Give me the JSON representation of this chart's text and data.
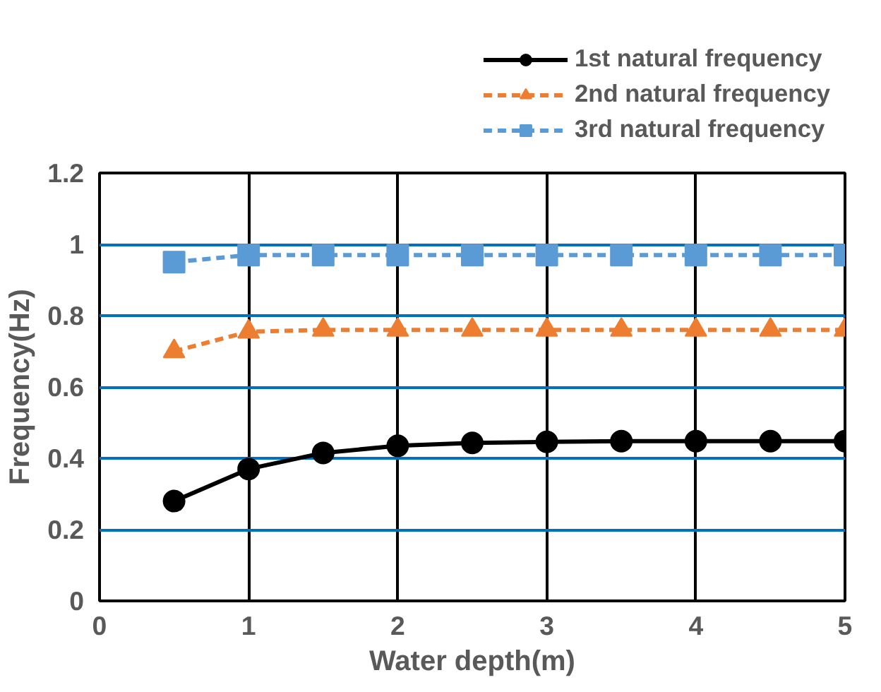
{
  "chart_data": {
    "type": "line",
    "xlabel": "Water depth(m)",
    "ylabel": "Frequency(Hz)",
    "x": [
      0.5,
      1,
      1.5,
      2,
      2.5,
      3,
      3.5,
      4,
      4.5,
      5
    ],
    "series": [
      {
        "name": "1st natural frequency",
        "color": "#000000",
        "marker": "circle",
        "line_style": "solid",
        "values": [
          0.28,
          0.37,
          0.415,
          0.435,
          0.443,
          0.446,
          0.448,
          0.448,
          0.448,
          0.448
        ]
      },
      {
        "name": "2nd natural frequency",
        "color": "#ed7d31",
        "marker": "triangle",
        "line_style": "dashed",
        "values": [
          0.7,
          0.755,
          0.76,
          0.76,
          0.76,
          0.76,
          0.76,
          0.76,
          0.76,
          0.76
        ]
      },
      {
        "name": "3rd natural frequency",
        "color": "#5b9bd5",
        "marker": "square",
        "line_style": "dashed",
        "values": [
          0.95,
          0.97,
          0.97,
          0.97,
          0.97,
          0.97,
          0.97,
          0.97,
          0.97,
          0.97
        ]
      }
    ],
    "xlim": [
      0,
      5
    ],
    "xticks": [
      0,
      1,
      2,
      3,
      4,
      5
    ],
    "ylim": [
      0,
      1.2
    ],
    "yticks": [
      0,
      0.2,
      0.4,
      0.6,
      0.8,
      1,
      1.2
    ],
    "grid": true,
    "legend": "top right"
  }
}
